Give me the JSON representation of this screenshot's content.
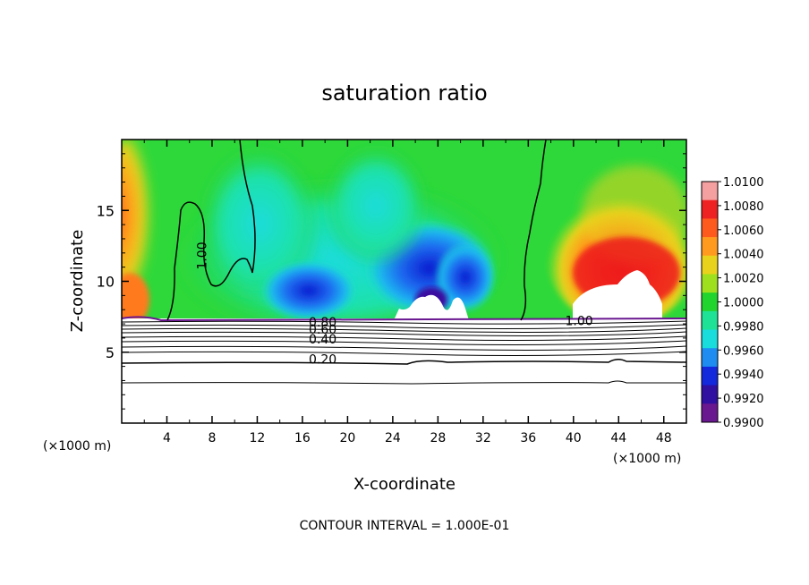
{
  "chart_data": {
    "type": "heatmap",
    "title": "saturation ratio",
    "xlabel": "X-coordinate",
    "ylabel": "Z-coordinate",
    "x_unit_left": "(×1000 m)",
    "x_unit_right": "(×1000 m)",
    "footer": "CONTOUR INTERVAL = 1.000E-01",
    "xlim": [
      0,
      50
    ],
    "ylim": [
      0,
      20
    ],
    "x_ticks": [
      4,
      8,
      12,
      16,
      20,
      24,
      28,
      32,
      36,
      40,
      44,
      48
    ],
    "y_ticks": [
      5,
      10,
      15
    ],
    "colorbar_labels": [
      "1.0100",
      "1.0080",
      "1.0060",
      "1.0040",
      "1.0020",
      "1.0000",
      "0.9980",
      "0.9960",
      "0.9940",
      "0.9920",
      "0.9900"
    ],
    "colorbar_colors": [
      "#f4a0a0",
      "#ee2222",
      "#ff5a1e",
      "#ff9a1e",
      "#e8d21c",
      "#9ee01e",
      "#22d42e",
      "#1ee296",
      "#19dcdc",
      "#1e8cf0",
      "#1428dc",
      "#3010a0",
      "#6a1890"
    ],
    "contour_labels": [
      {
        "text": "1.00",
        "x": 7.5,
        "z": 11.8
      },
      {
        "text": "0.80",
        "x": 17.8,
        "z": 6.8
      },
      {
        "text": "0.60",
        "x": 17.8,
        "z": 6.3
      },
      {
        "text": "0.40",
        "x": 17.8,
        "z": 5.6
      },
      {
        "text": "0.20",
        "x": 17.8,
        "z": 4.2
      },
      {
        "text": "1.00",
        "x": 40.5,
        "z": 6.9
      }
    ],
    "contour_interval": 0.1
  }
}
